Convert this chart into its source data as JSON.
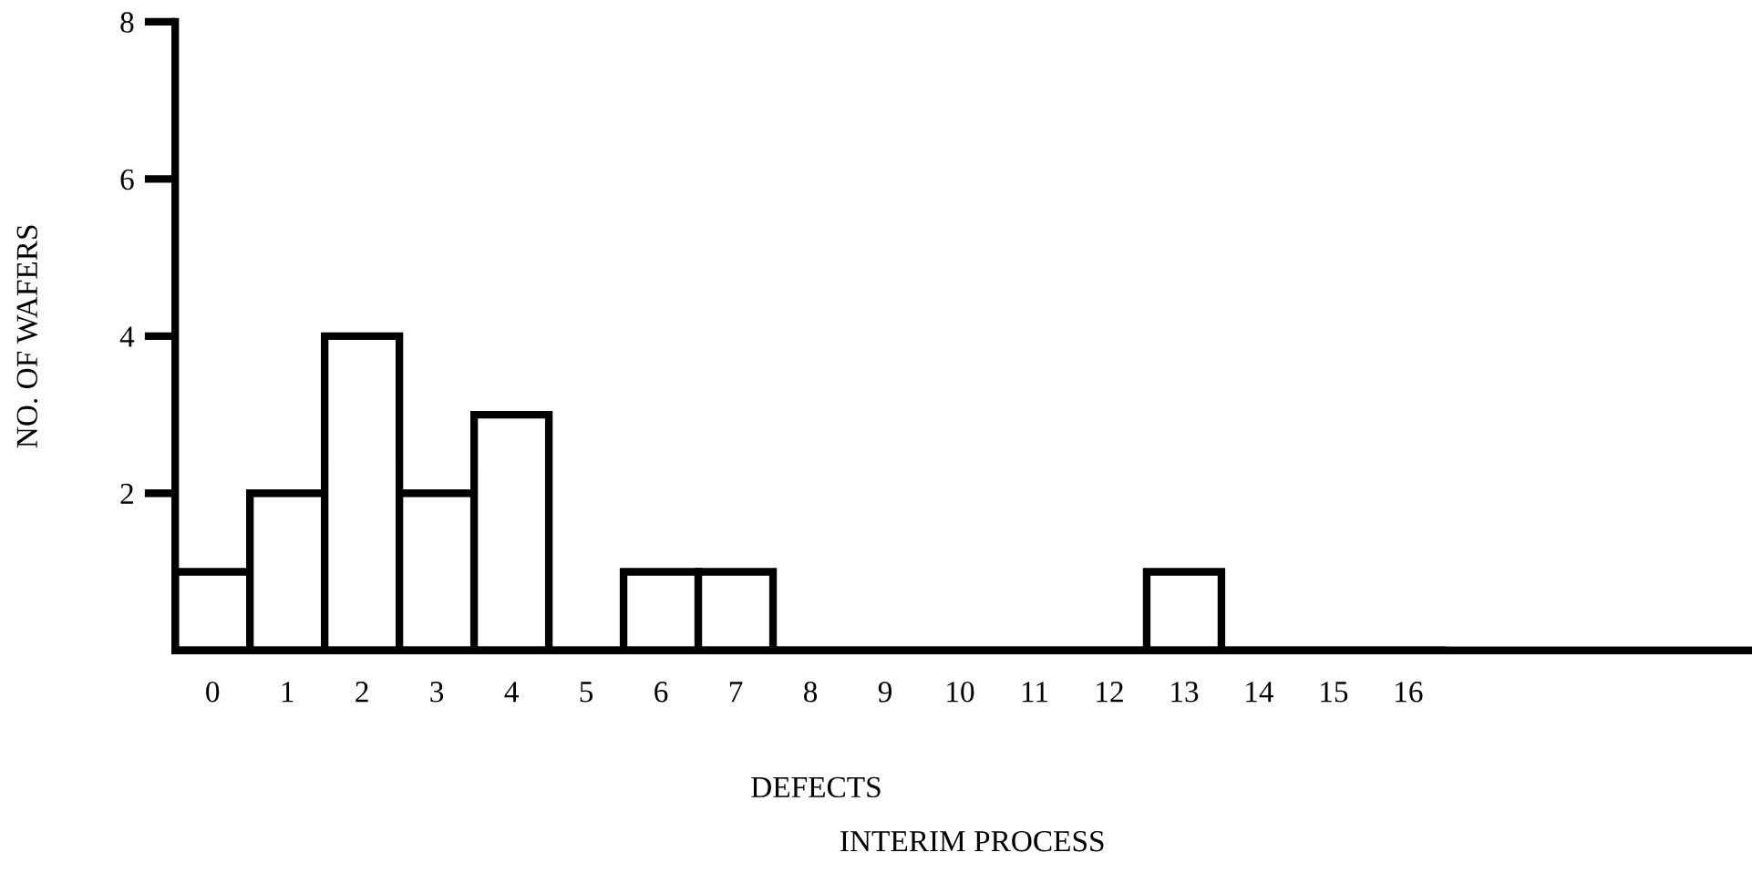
{
  "chart_data": {
    "type": "bar",
    "xlabel": "DEFECTS",
    "ylabel": "NO. OF WAFERS",
    "annotations": [
      "INTERIM PROCESS"
    ],
    "categories": [
      "0",
      "1",
      "2",
      "3",
      "4",
      "5",
      "6",
      "7",
      "8",
      "9",
      "10",
      "11",
      "12",
      "13",
      "14",
      "15",
      "16"
    ],
    "values": [
      1,
      2,
      4,
      2,
      3,
      0,
      1,
      1,
      0,
      0,
      0,
      0,
      0,
      1,
      0,
      0,
      0
    ],
    "color": "#ffffff",
    "ylim": [
      0,
      8
    ],
    "yticks": [
      2,
      4,
      6,
      8
    ],
    "grid": false,
    "legend": false
  }
}
